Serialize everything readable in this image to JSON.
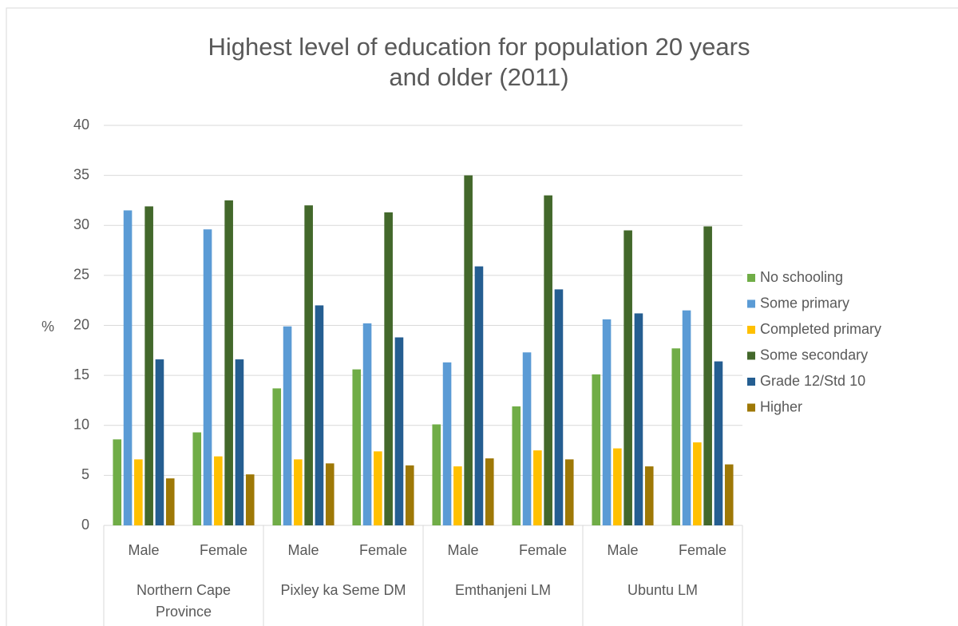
{
  "chart_data": {
    "type": "bar",
    "title": "Highest level of education for population 20 years and older (2011)",
    "y_label": "%",
    "categories": [
      "Male",
      "Female",
      "Male",
      "Female",
      "Male",
      "Female",
      "Male",
      "Female"
    ],
    "groups": [
      "Northern Cape Province",
      "Pixley ka Seme DM",
      "Emthanjeni LM",
      "Ubuntu LM"
    ],
    "series": [
      {
        "name": "No schooling",
        "color": "#70ad47",
        "values": [
          8.6,
          9.3,
          13.7,
          15.6,
          10.1,
          11.9,
          15.1,
          17.7
        ]
      },
      {
        "name": "Some primary",
        "color": "#5b9bd5",
        "values": [
          31.5,
          29.6,
          19.9,
          20.2,
          16.3,
          17.3,
          20.6,
          21.5
        ]
      },
      {
        "name": "Completed primary",
        "color": "#ffc000",
        "values": [
          6.6,
          6.9,
          6.6,
          7.4,
          5.9,
          7.5,
          7.7,
          8.3
        ]
      },
      {
        "name": "Some secondary",
        "color": "#43682b",
        "values": [
          31.9,
          32.5,
          32.0,
          31.3,
          35.0,
          33.0,
          29.5,
          29.9
        ]
      },
      {
        "name": "Grade 12/Std 10",
        "color": "#255e91",
        "values": [
          16.6,
          16.6,
          22.0,
          18.8,
          25.9,
          23.6,
          21.2,
          16.4
        ]
      },
      {
        "name": "Higher",
        "color": "#9e7806",
        "values": [
          4.7,
          5.1,
          6.2,
          6.0,
          6.7,
          6.6,
          5.9,
          6.1
        ]
      }
    ],
    "ylim": [
      0,
      40
    ],
    "yticks": [
      0,
      5,
      10,
      15,
      20,
      25,
      30,
      35,
      40
    ],
    "grid": true,
    "legend": "right"
  }
}
